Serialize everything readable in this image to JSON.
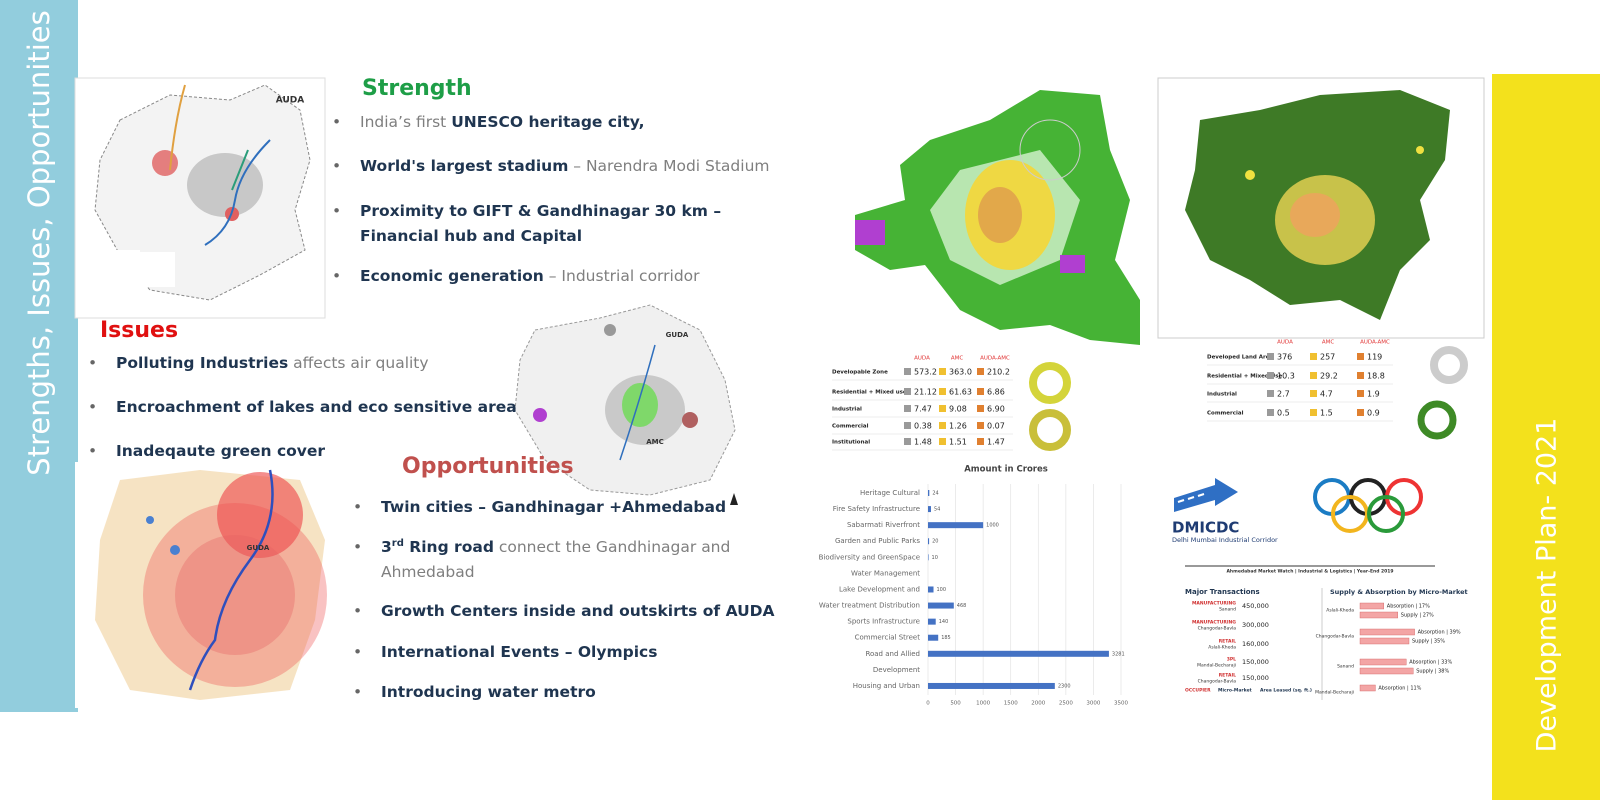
{
  "side_titles": {
    "left": "Strengths, Issues, Opportunities",
    "right": "Development Plan- 2021"
  },
  "strength": {
    "heading": "Strength",
    "items": [
      [
        [
          "India’s first ",
          "n"
        ],
        [
          "UNESCO heritage city,",
          "b"
        ]
      ],
      [
        [
          "World's largest stadium",
          "b"
        ],
        [
          " – Narendra Modi Stadium",
          "n"
        ]
      ],
      [
        [
          "Proximity to GIFT & Gandhinagar  30 km –\nFinancial hub and Capital",
          "b"
        ]
      ],
      [
        [
          "Economic generation",
          "b"
        ],
        [
          " – Industrial corridor",
          "n"
        ]
      ]
    ]
  },
  "issues": {
    "heading": "Issues",
    "items": [
      [
        [
          "Polluting Industries",
          "b"
        ],
        [
          "  affects air quality",
          "n"
        ]
      ],
      [
        [
          "Encroachment of lakes and eco sensitive area",
          "b"
        ]
      ],
      [
        [
          "Inadeqaute green cover",
          "b"
        ]
      ]
    ]
  },
  "opportunities": {
    "heading": "Opportunities",
    "items": [
      [
        [
          "Twin cities – Gandhinagar +Ahmedabad",
          "b"
        ]
      ],
      [
        [
          "3",
          "b"
        ],
        [
          "rd",
          "sup"
        ],
        [
          " Ring road",
          "b"
        ],
        [
          " connect the Gandhinagar and\nAhmedabad",
          "n"
        ]
      ],
      [
        [
          "Growth Centers inside and outskirts of AUDA",
          "b"
        ]
      ],
      [
        [
          "International Events – Olympics",
          "b"
        ]
      ],
      [
        [
          "Introducing water metro",
          "b"
        ]
      ]
    ]
  },
  "map_labels": [
    "AUDA",
    "GUDA",
    "AMC",
    "GUDA"
  ],
  "land_use_tables": [
    {
      "columns": [
        "AUDA",
        "AMC",
        "AUDA-AMC"
      ],
      "rows": [
        {
          "label": "Developable Zone",
          "values": [
            "573.2",
            "363.0",
            "210.2"
          ]
        },
        {
          "label": "Residential + Mixed use",
          "values": [
            "21.12",
            "61.63",
            "6.86"
          ]
        },
        {
          "label": "Industrial",
          "values": [
            "7.47",
            "9.08",
            "6.90"
          ]
        },
        {
          "label": "Commercial",
          "values": [
            "0.38",
            "1.26",
            "0.07"
          ]
        },
        {
          "label": "Institutional",
          "values": [
            "1.48",
            "1.51",
            "1.47"
          ]
        }
      ]
    },
    {
      "columns": [
        "AUDA",
        "AMC",
        "AUDA-AMC"
      ],
      "rows": [
        {
          "label": "Developed Land Area",
          "values": [
            "376",
            "257",
            "119"
          ]
        },
        {
          "label": "Residential + Mixed Use",
          "values": [
            "10.3",
            "29.2",
            "18.8"
          ]
        },
        {
          "label": "Industrial",
          "values": [
            "2.7",
            "4.7",
            "1.9"
          ]
        },
        {
          "label": "Commercial",
          "values": [
            "0.5",
            "1.5",
            "0.9"
          ]
        }
      ]
    }
  ],
  "logo": {
    "name": "DMICDC",
    "subtitle": "Delhi Mumbai Industrial Corridor"
  },
  "market_watch": {
    "title": "Ahmedabad Market Watch | Industrial & Logistics | Year-End 2019",
    "transactions_heading": "Major Transactions",
    "transactions": [
      {
        "type": "MANUFACTURING",
        "location": "Sanand",
        "area": "450,000"
      },
      {
        "type": "MANUFACTURING",
        "location": "Changodar-Bavla",
        "area": "300,000"
      },
      {
        "type": "RETAIL",
        "location": "Aslali-Kheda",
        "area": "160,000"
      },
      {
        "type": "3PL",
        "location": "Mandal-Becharaji",
        "area": "150,000"
      },
      {
        "type": "RETAIL",
        "location": "Changodar-Bavla",
        "area": "150,000"
      }
    ],
    "legend": [
      "OCCUPIER",
      "Micro-Market",
      "Area Leased (sq. ft.)"
    ],
    "supply_heading": "Supply & Absorption by Micro-Market",
    "micro_markets": [
      {
        "name": "Aslali-Kheda",
        "absorption": 17,
        "absorption_label": "Absorption | 17%",
        "supply": 27,
        "supply_label": "Supply | 27%"
      },
      {
        "name": "Changodar-Bavla",
        "absorption": 39,
        "absorption_label": "Absorption | 39%",
        "supply": 35,
        "supply_label": "Supply | 35%"
      },
      {
        "name": "Sanand",
        "absorption": 33,
        "absorption_label": "Absorption | 33%",
        "supply": 38,
        "supply_label": "Supply | 38%"
      },
      {
        "name": "Mandal-Becharaji",
        "absorption": 11,
        "absorption_label": "Absorption | 11%"
      }
    ]
  },
  "chart_data": {
    "type": "hbar",
    "title": "Amount in Crores",
    "categories": [
      "Heritage Cultural",
      "Fire Safety Infrastructure",
      "Sabarmati Riverfront",
      "Garden and Public Parks",
      "Biodiversity and GreenSpace",
      "Water Management",
      "Lake Development and",
      "Water treatment Distribution",
      "Sports Infrastructure",
      "Commercial Street",
      "Road and Allied",
      "Development",
      "Housing and Urban"
    ],
    "values": [
      24,
      54,
      1000,
      20,
      10,
      null,
      100,
      468,
      140,
      185,
      3281,
      null,
      2300
    ],
    "color": "#4472c4",
    "xlim": [
      0,
      3500
    ],
    "xticks": [
      0,
      500,
      1000,
      1500,
      2000,
      2500,
      3000,
      3500
    ],
    "grid": true
  }
}
